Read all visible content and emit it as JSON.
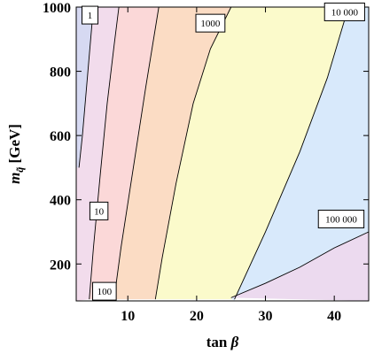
{
  "chart_data": {
    "type": "contour",
    "title": "",
    "xlabel_main": "tan ",
    "xlabel_symbol": "β",
    "ylabel_main": "m",
    "ylabel_sub": "q̃",
    "ylabel_unit": " [GeV]",
    "xlim": [
      2.5,
      45
    ],
    "ylim": [
      85,
      1000
    ],
    "xticks": [
      10,
      20,
      30,
      40
    ],
    "yticks": [
      200,
      400,
      600,
      800,
      1000
    ],
    "region_colors": [
      "#d6d9f2",
      "#f2dcec",
      "#fbd8d8",
      "#fbdcc4",
      "#fbfacb",
      "#d8e9fb",
      "#ecdaef"
    ],
    "contours": [
      {
        "label": "1",
        "label_at": [
          4.5,
          975
        ],
        "points": [
          [
            2.9,
            500
          ],
          [
            3.4,
            600
          ],
          [
            4.2,
            800
          ],
          [
            5.0,
            1000
          ]
        ]
      },
      {
        "label": "10",
        "label_at": [
          5.8,
          365
        ],
        "points": [
          [
            4.4,
            90
          ],
          [
            5.0,
            250
          ],
          [
            6.0,
            480
          ],
          [
            7.0,
            700
          ],
          [
            8.0,
            880
          ],
          [
            8.7,
            1000
          ]
        ]
      },
      {
        "label": "100",
        "label_at": [
          6.6,
          115
        ],
        "points": [
          [
            8.0,
            90
          ],
          [
            9.0,
            250
          ],
          [
            10.8,
            500
          ],
          [
            12.6,
            750
          ],
          [
            14.5,
            1000
          ]
        ]
      },
      {
        "label": "1000",
        "label_at": [
          22.0,
          950
        ],
        "points": [
          [
            14.0,
            90
          ],
          [
            15.0,
            220
          ],
          [
            17.0,
            450
          ],
          [
            19.5,
            700
          ],
          [
            22.0,
            870
          ],
          [
            25.0,
            1000
          ]
        ]
      },
      {
        "label": "10 000",
        "label_at": [
          41.5,
          985
        ],
        "points": [
          [
            25.5,
            90
          ],
          [
            30.0,
            300
          ],
          [
            35.0,
            550
          ],
          [
            39.0,
            780
          ],
          [
            41.5,
            960
          ],
          [
            42.0,
            1000
          ]
        ]
      },
      {
        "label": "100 000",
        "label_at": [
          41.0,
          340
        ],
        "points": [
          [
            25.0,
            95
          ],
          [
            30.0,
            140
          ],
          [
            35.0,
            190
          ],
          [
            40.0,
            250
          ],
          [
            45.0,
            300
          ]
        ]
      }
    ]
  }
}
